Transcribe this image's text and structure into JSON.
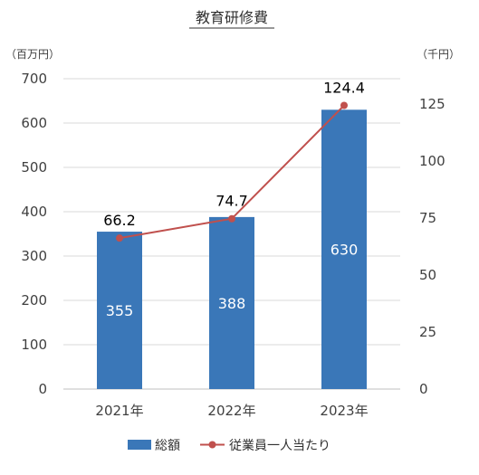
{
  "chart_data": {
    "type": "bar",
    "title": "教育研修費",
    "left_unit": "（百万円）",
    "right_unit": "（千円）",
    "categories": [
      "2021年",
      "2022年",
      "2023年"
    ],
    "left_axis": {
      "ylim": [
        0,
        700
      ],
      "ticks": [
        "0",
        "100",
        "200",
        "300",
        "400",
        "500",
        "600",
        "700"
      ]
    },
    "right_axis": {
      "ylim": [
        0,
        136.1
      ],
      "ticks": [
        "0",
        "25",
        "50",
        "75",
        "100",
        "125"
      ]
    },
    "series": [
      {
        "name": "総額",
        "type": "bar",
        "axis": "left",
        "color": "#3a77b8",
        "values": [
          355,
          388,
          630
        ],
        "labels": [
          "355",
          "388",
          "630"
        ]
      },
      {
        "name": "従業員一人当たり",
        "type": "line",
        "axis": "right",
        "color": "#c0504d",
        "values": [
          66.2,
          74.7,
          124.4
        ],
        "labels": [
          "66.2",
          "74.7",
          "124.4"
        ]
      }
    ],
    "grid": true,
    "legend": "bottom"
  }
}
